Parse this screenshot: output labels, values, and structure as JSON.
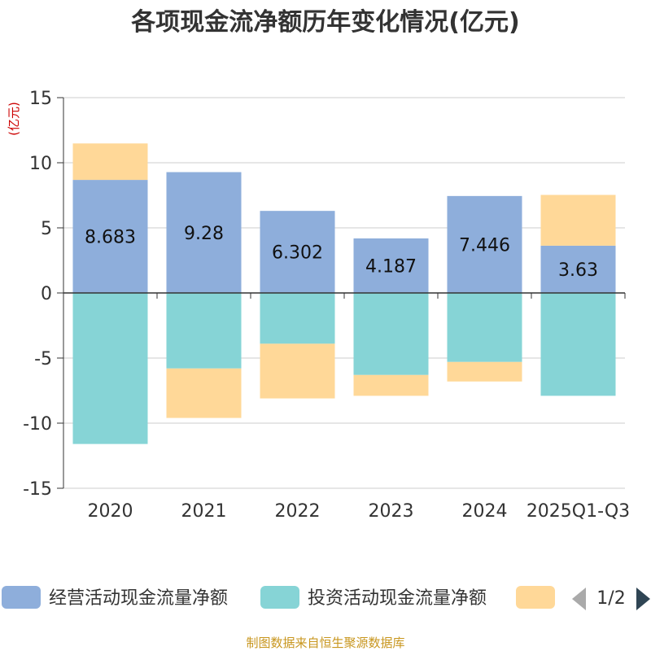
{
  "chart_data": {
    "type": "bar",
    "stacked": true,
    "title": "各项现金流净额历年变化情况(亿元)",
    "ylabel": "(亿元)",
    "ylim": [
      -15,
      15
    ],
    "yticks": [
      15,
      10,
      5,
      0,
      -5,
      -10,
      -15
    ],
    "ytick_labels": [
      "15",
      "10",
      "5",
      "0",
      "-5",
      "-10",
      "-15"
    ],
    "categories": [
      "2020",
      "2021",
      "2022",
      "2023",
      "2024",
      "2025Q1-Q3"
    ],
    "series": [
      {
        "name": "经营活动现金流量净额",
        "color": "#8eaedb",
        "values": [
          8.683,
          9.28,
          6.302,
          4.187,
          7.446,
          3.63
        ],
        "labels": [
          "8.683",
          "9.28",
          "6.302",
          "4.187",
          "7.446",
          "3.63"
        ]
      },
      {
        "name": "投资活动现金流量净额",
        "color": "#86d4d6",
        "values": [
          -11.6,
          -5.8,
          -3.9,
          -6.3,
          -5.3,
          -7.9
        ]
      },
      {
        "name": "",
        "color": "#ffd898",
        "values": [
          2.8,
          -3.8,
          -4.2,
          -1.6,
          -1.5,
          3.9
        ]
      }
    ],
    "grid": true,
    "legend_position": "bottom"
  },
  "legend": {
    "page_label": "1/2"
  },
  "source_text": "制图数据来自恒生聚源数据库"
}
